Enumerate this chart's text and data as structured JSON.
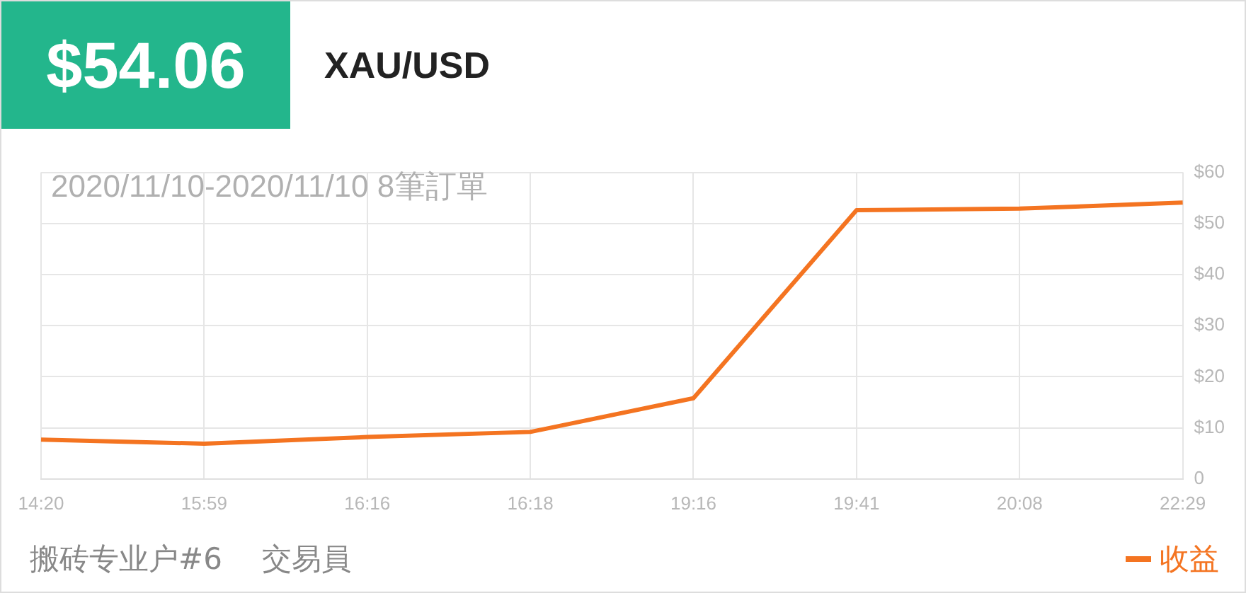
{
  "chart_data": {
    "type": "line",
    "title": "XAU/USD",
    "subtitle": "2020/11/10-2020/11/10 8筆訂單",
    "annotations": [
      "$54.06",
      "搬砖专业户#6",
      "交易員"
    ],
    "categories": [
      "14:20",
      "15:59",
      "16:16",
      "16:18",
      "19:16",
      "19:41",
      "20:08",
      "22:29"
    ],
    "series": [
      {
        "name": "收益",
        "color": "#f47421",
        "values": [
          7.7,
          6.9,
          8.2,
          9.2,
          15.8,
          52.6,
          52.9,
          54.1
        ]
      }
    ],
    "ylim": [
      0,
      60
    ],
    "yticks": [
      {
        "value": 0,
        "label": "0"
      },
      {
        "value": 10,
        "label": "$10"
      },
      {
        "value": 20,
        "label": "$20"
      },
      {
        "value": 30,
        "label": "$30"
      },
      {
        "value": 40,
        "label": "$40"
      },
      {
        "value": 50,
        "label": "$50"
      },
      {
        "value": 60,
        "label": "$60"
      }
    ],
    "grid": true,
    "legend": "bottom right",
    "marker": "none",
    "line_style": "solid"
  }
}
